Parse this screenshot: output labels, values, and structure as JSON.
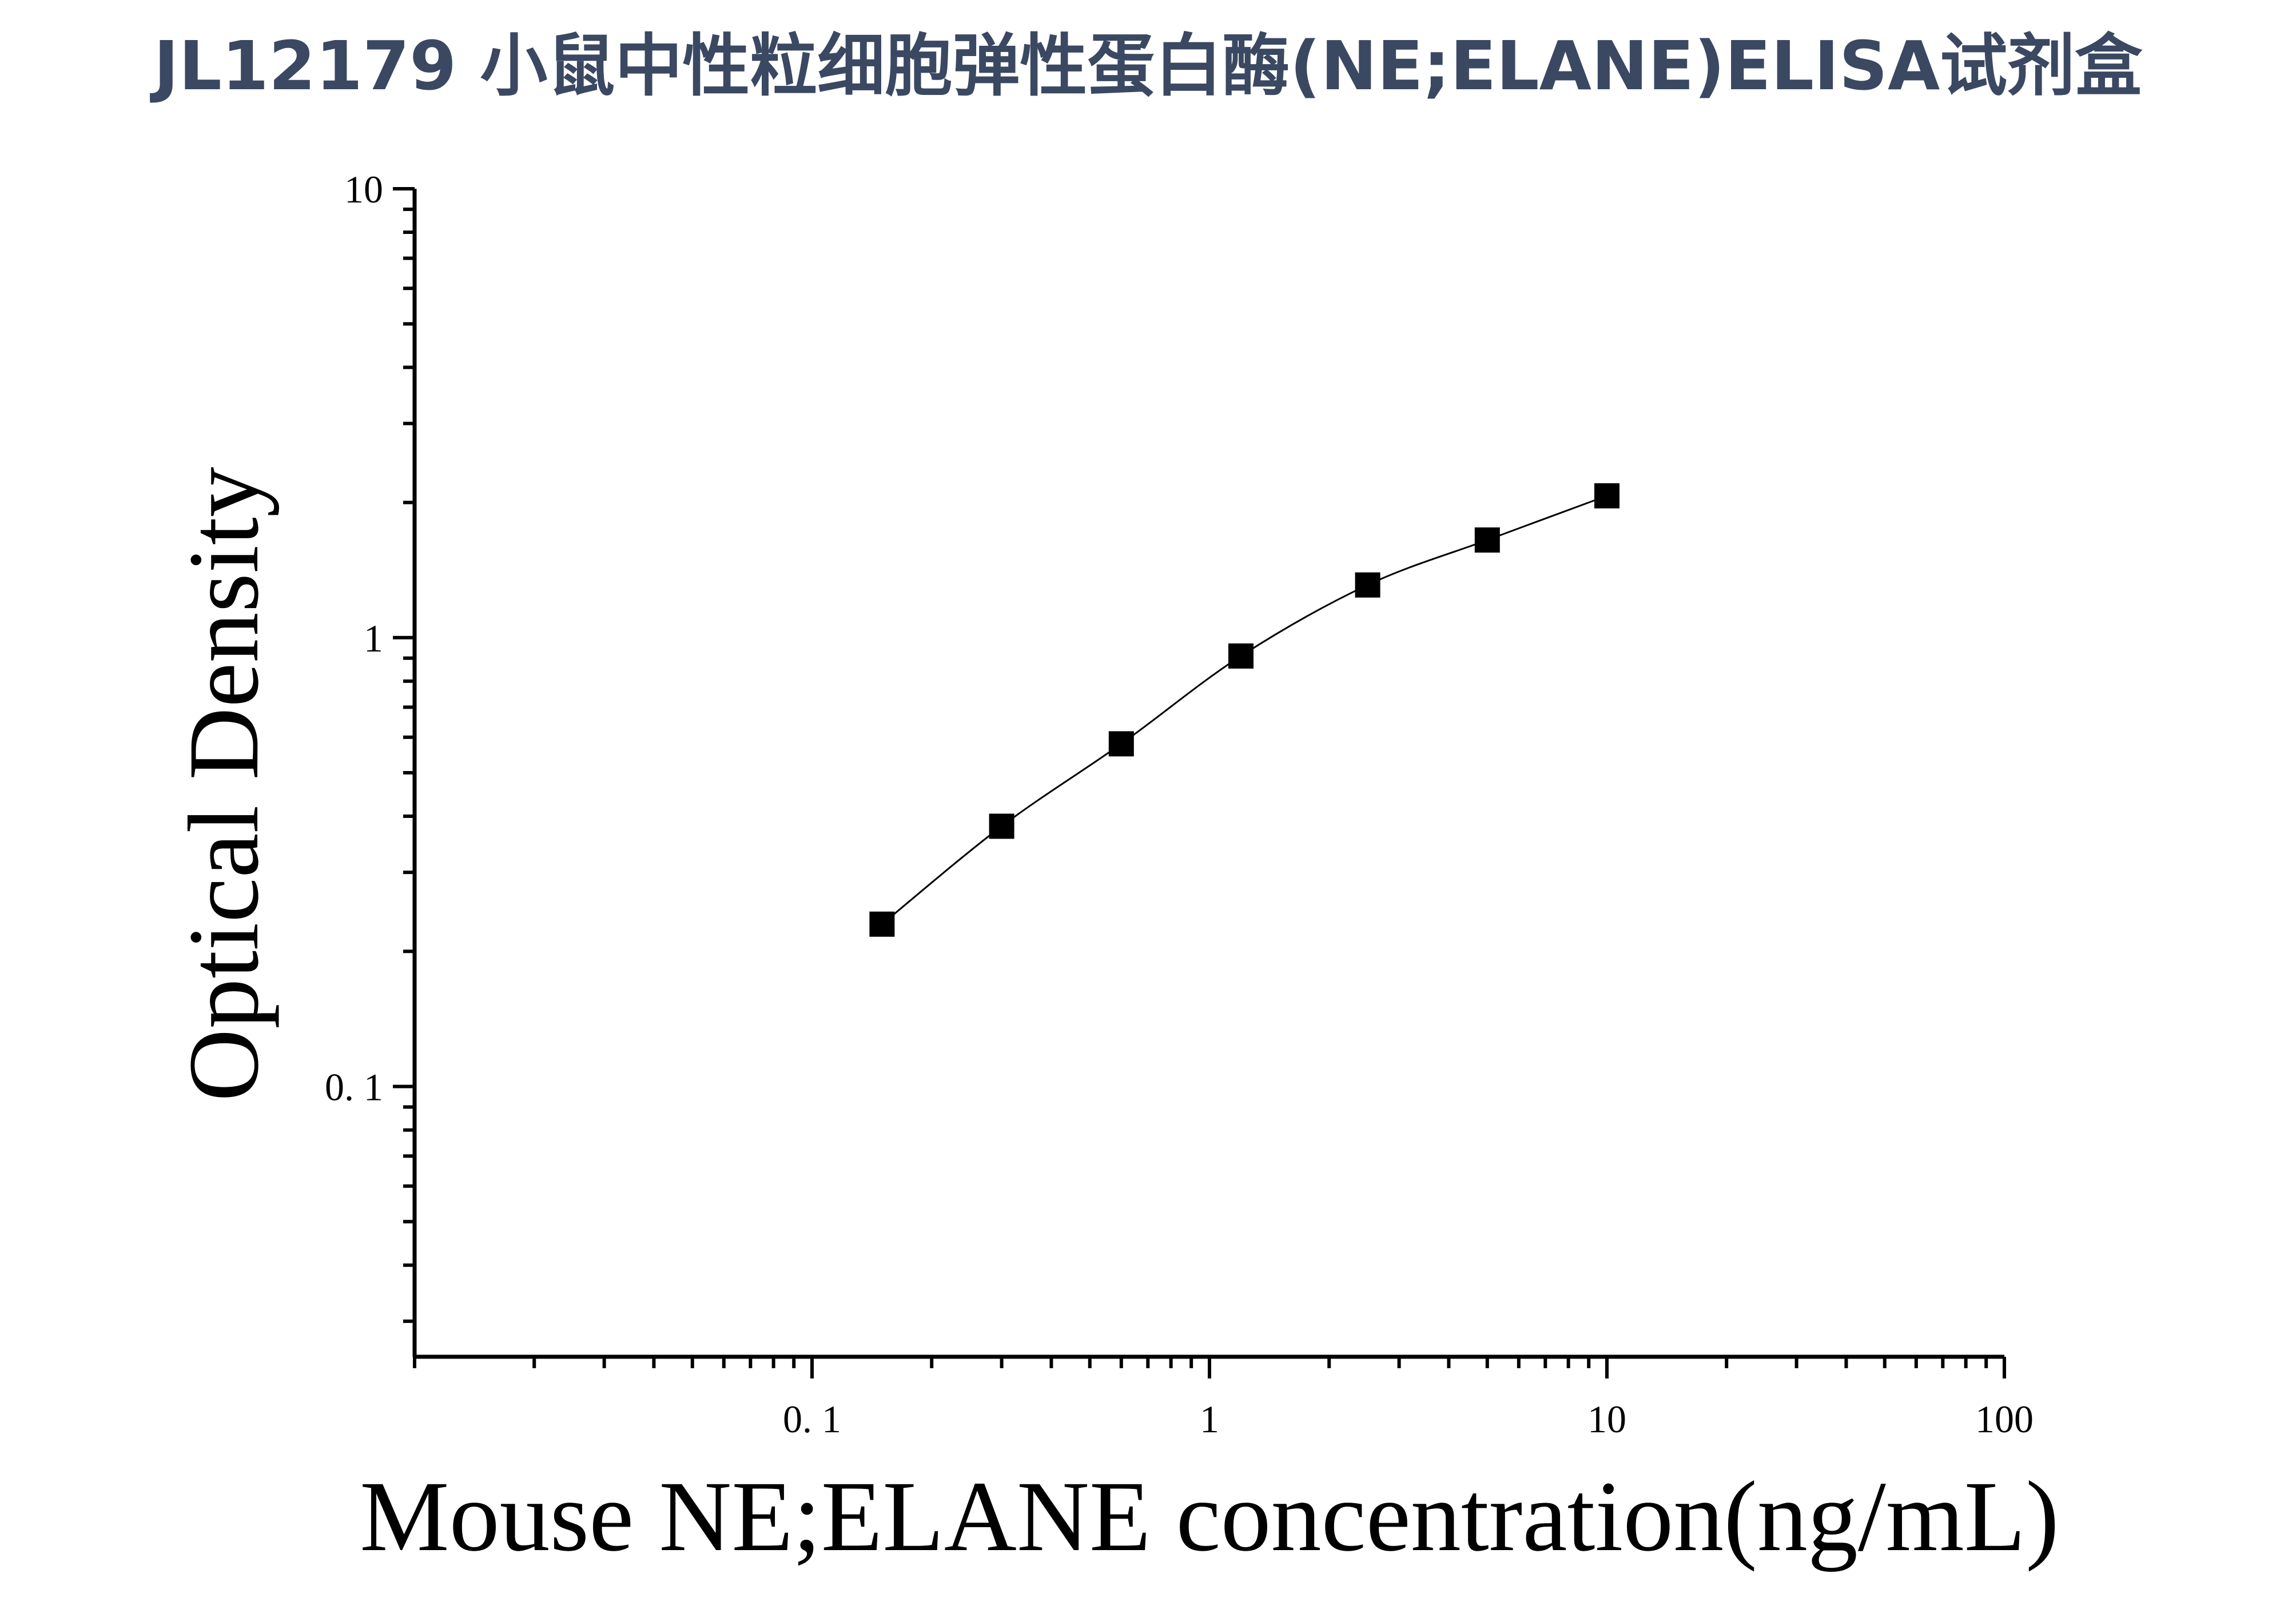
{
  "colors": {
    "title": "#3b4862",
    "axis": "#000000",
    "marker": "#000000",
    "background": "#ffffff"
  },
  "chart_data": {
    "type": "scatter",
    "title": "JL12179 小鼠中性粒细胞弹性蛋白酶(NE;ELANE)ELISA试剂盒",
    "xlabel": "Mouse NE;ELANE concentration(ng/mL)",
    "ylabel": "Optical Density",
    "x_scale": "log",
    "y_scale": "log",
    "xlim": [
      0.01,
      100
    ],
    "ylim": [
      0.025,
      10
    ],
    "x_ticks": [
      {
        "value": 0.1,
        "label": "0. 1"
      },
      {
        "value": 1,
        "label": "1"
      },
      {
        "value": 10,
        "label": "10"
      },
      {
        "value": 100,
        "label": "100"
      }
    ],
    "y_ticks": [
      {
        "value": 0.1,
        "label": "0. 1"
      },
      {
        "value": 1,
        "label": "1"
      },
      {
        "value": 10,
        "label": "10"
      }
    ],
    "grid": false,
    "legend": "none",
    "marker": "square",
    "fit_line": true,
    "series": [
      {
        "x": [
          0.15,
          0.3,
          0.6,
          1.2,
          2.5,
          5,
          10
        ],
        "y": [
          0.23,
          0.38,
          0.58,
          0.91,
          1.31,
          1.65,
          2.07
        ]
      }
    ]
  }
}
